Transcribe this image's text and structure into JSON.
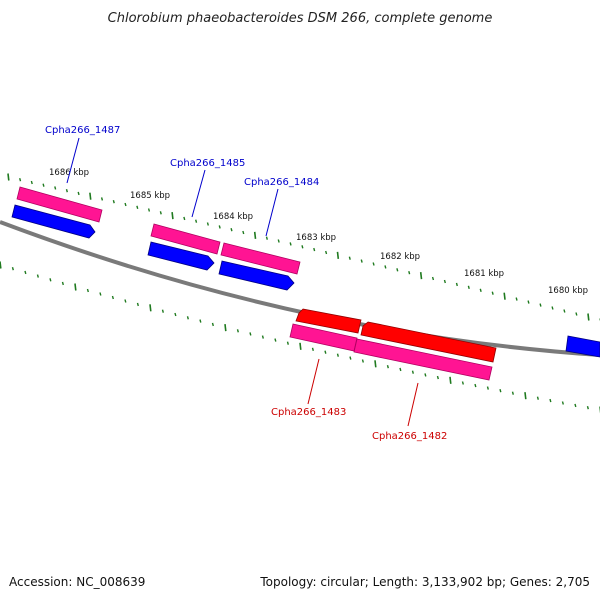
{
  "title": "Chlorobium phaeobacteroides DSM 266, complete genome",
  "footer": {
    "accession": "Accession: NC_008639",
    "summary": "Topology: circular; Length: 3,133,902 bp; Genes: 2,705"
  },
  "colors": {
    "backbone": "#808080",
    "tick": "#1f7a1f",
    "forward_gene": "#0000ff",
    "reverse_gene": "#ff0000",
    "cds": "#ff1493",
    "forward_label": "#0000cc",
    "reverse_label": "#cc0000"
  },
  "scale_labels": [
    "1686 kbp",
    "1685 kbp",
    "1684 kbp",
    "1683 kbp",
    "1682 kbp",
    "1681 kbp",
    "1680 kbp"
  ],
  "genes": [
    {
      "label": "Cpha266_1487",
      "strand": "forward"
    },
    {
      "label": "Cpha266_1485",
      "strand": "forward"
    },
    {
      "label": "Cpha266_1484",
      "strand": "forward"
    },
    {
      "label": "Cpha266_1483",
      "strand": "reverse"
    },
    {
      "label": "Cpha266_1482",
      "strand": "reverse"
    }
  ]
}
